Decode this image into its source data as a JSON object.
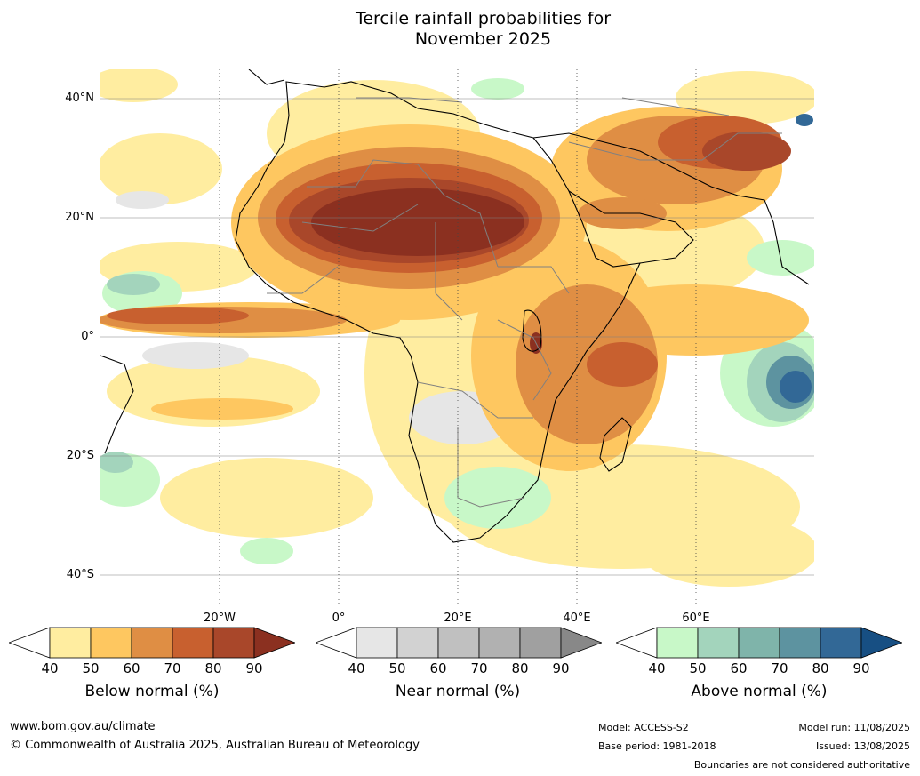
{
  "title": {
    "line1": "Tercile rainfall probabilities for",
    "line2": "November 2025"
  },
  "map": {
    "lat_labels": [
      "40°N",
      "20°N",
      "0°",
      "20°S",
      "40°S"
    ],
    "lon_labels": [
      "20°W",
      "0°",
      "20°E",
      "40°E",
      "60°E"
    ],
    "colors": {
      "ocean_bg": "#ffffff",
      "land_line": "#000000",
      "border_line": "#808080"
    }
  },
  "legends": [
    {
      "name": "below",
      "label": "Below normal (%)",
      "ticks": [
        "40",
        "50",
        "60",
        "70",
        "80",
        "90"
      ],
      "colors": [
        "#ffeda0",
        "#fec760",
        "#df8e44",
        "#c8602f",
        "#a9472a",
        "#8b3020"
      ]
    },
    {
      "name": "near",
      "label": "Near normal (%)",
      "ticks": [
        "40",
        "50",
        "60",
        "70",
        "80",
        "90"
      ],
      "colors": [
        "#e6e6e6",
        "#d2d2d2",
        "#c0c0c0",
        "#b1b1b1",
        "#a0a0a0",
        "#888888"
      ]
    },
    {
      "name": "above",
      "label": "Above normal (%)",
      "ticks": [
        "40",
        "50",
        "60",
        "70",
        "80",
        "90"
      ],
      "colors": [
        "#c8f8c8",
        "#a3d4bc",
        "#7fb4aa",
        "#5d93a0",
        "#326896",
        "#174f83"
      ]
    }
  ],
  "footer": {
    "website": "www.bom.gov.au/climate",
    "copyright": "© Commonwealth of Australia 2025, Australian Bureau of Meteorology",
    "model": "Model: ACCESS-S2",
    "base_period": "Base period: 1981-2018",
    "model_run": "Model run: 11/08/2025",
    "issued": "Issued: 13/08/2025",
    "disclaimer": "Boundaries are not considered authoritative"
  }
}
